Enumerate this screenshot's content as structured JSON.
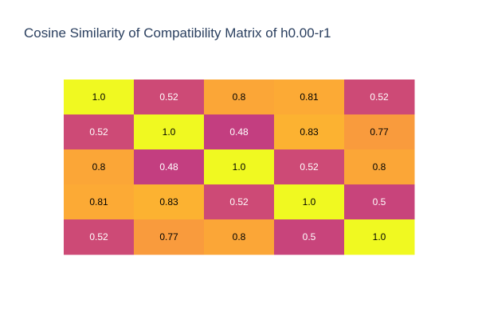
{
  "chart_data": {
    "type": "heatmap",
    "title": "Cosine Similarity of Compatibility Matrix of h0.00-r1",
    "xlabel": "",
    "ylabel": "",
    "grid": false,
    "legend": "none",
    "colorscale": [
      "#0d0887",
      "#46039f",
      "#7201a8",
      "#9c179e",
      "#bd3786",
      "#d8576b",
      "#ed7953",
      "#fb9f3a",
      "#fdca26",
      "#f0f921"
    ],
    "zmin": 0.48,
    "zmax": 1.0,
    "matrix": [
      [
        1.0,
        0.52,
        0.8,
        0.81,
        0.52
      ],
      [
        0.52,
        1.0,
        0.48,
        0.83,
        0.77
      ],
      [
        0.8,
        0.48,
        1.0,
        0.52,
        0.8
      ],
      [
        0.81,
        0.83,
        0.52,
        1.0,
        0.5
      ],
      [
        0.52,
        0.77,
        0.8,
        0.5,
        1.0
      ]
    ],
    "labels": [
      [
        "1.0",
        "0.52",
        "0.8",
        "0.81",
        "0.52"
      ],
      [
        "0.52",
        "1.0",
        "0.48",
        "0.83",
        "0.77"
      ],
      [
        "0.8",
        "0.48",
        "1.0",
        "0.52",
        "0.8"
      ],
      [
        "0.81",
        "0.83",
        "0.52",
        "1.0",
        "0.5"
      ],
      [
        "0.52",
        "0.77",
        "0.8",
        "0.5",
        "1.0"
      ]
    ]
  }
}
